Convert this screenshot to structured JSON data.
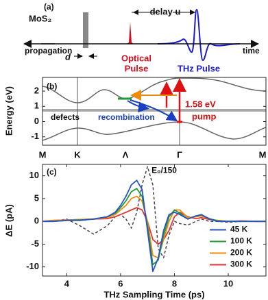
{
  "panel_a": {
    "label": "(a)",
    "sample": "MoS₂",
    "delay": "delay u",
    "propagation": "propagation",
    "thickness": "d",
    "optical_pulse": [
      "Optical",
      "Pulse"
    ],
    "thz_pulse": "THz Pulse",
    "time": "time"
  },
  "panel_b": {
    "label": "(b)",
    "ylabel": "Energy (eV)",
    "categories": [
      "M",
      "K",
      "Λ",
      "Γ",
      "M"
    ],
    "ylim": [
      -1.55,
      2.9
    ],
    "yticks": [
      -1,
      0,
      1,
      2
    ],
    "annotations": {
      "defects": "defects",
      "recombination": "recombination",
      "gap": "1.58 eV",
      "pump": "pump"
    }
  },
  "chart_data": {
    "type": "line",
    "label": "(c)",
    "xlabel": "THz Sampling Time (ps)",
    "ylabel": "ΔE (pA)",
    "x": [
      3.1,
      3.5,
      4,
      4.5,
      5,
      5.5,
      5.8,
      6,
      6.2,
      6.4,
      6.6,
      6.8,
      7,
      7.2,
      7.4,
      7.6,
      7.8,
      8,
      8.2,
      8.5,
      8.8,
      9,
      9.3,
      9.6,
      10,
      10.5,
      11,
      11.4
    ],
    "series": [
      {
        "name": "45 K",
        "color": "#2a52c8",
        "values": [
          0,
          0,
          0.2,
          0.2,
          0.5,
          1,
          2,
          3.5,
          5.5,
          8,
          9,
          7,
          -2,
          -11,
          -8,
          -2,
          1.5,
          2,
          1.5,
          0.5,
          1.2,
          1.5,
          0.5,
          0,
          0,
          0,
          0,
          0
        ]
      },
      {
        "name": "100 K",
        "color": "#1f9a3a",
        "values": [
          0,
          0,
          0.2,
          0.3,
          0.5,
          1,
          1.8,
          3,
          4.5,
          6.5,
          7.2,
          5.5,
          -1,
          -9.5,
          -8.5,
          -3,
          1,
          2.5,
          1.8,
          0.5,
          1.2,
          1.4,
          0.6,
          0.1,
          0,
          0,
          0,
          0
        ]
      },
      {
        "name": "200 K",
        "color": "#f08a0a",
        "values": [
          0,
          0.2,
          0.3,
          0.4,
          0.5,
          0.8,
          1.5,
          2.5,
          3.5,
          5,
          5.5,
          4.5,
          0,
          -7.5,
          -8,
          -4,
          0,
          2.5,
          2.5,
          0.8,
          1,
          1.2,
          0.5,
          0.2,
          0,
          0.1,
          0,
          0
        ]
      },
      {
        "name": "300 K",
        "color": "#e03535",
        "values": [
          0,
          0.2,
          0.3,
          0.4,
          0.5,
          0.6,
          1,
          1.5,
          2,
          2.5,
          3,
          2.5,
          0,
          -4,
          -5,
          -4,
          -2,
          1,
          2,
          1,
          0.6,
          0.8,
          0.4,
          0.2,
          0,
          0.1,
          0,
          0
        ]
      }
    ],
    "reference": {
      "name": "E₀/150",
      "color": "#444444",
      "linestyle": "dashed",
      "values": [
        0,
        0,
        0.5,
        -1,
        -2.8,
        -1,
        1,
        1.5,
        0.5,
        -1.5,
        2,
        8,
        12,
        8,
        -6,
        -8,
        -3,
        0,
        -0.5,
        -0.8,
        0,
        0.5,
        0,
        0,
        -0.2,
        0,
        0,
        0
      ]
    },
    "xlim": [
      3.1,
      11.4
    ],
    "ylim": [
      -12,
      12.5
    ],
    "xticks": [
      4,
      6,
      8,
      10
    ],
    "yticks": [
      -10,
      -5,
      0,
      5,
      10
    ],
    "legend": "lower right"
  }
}
